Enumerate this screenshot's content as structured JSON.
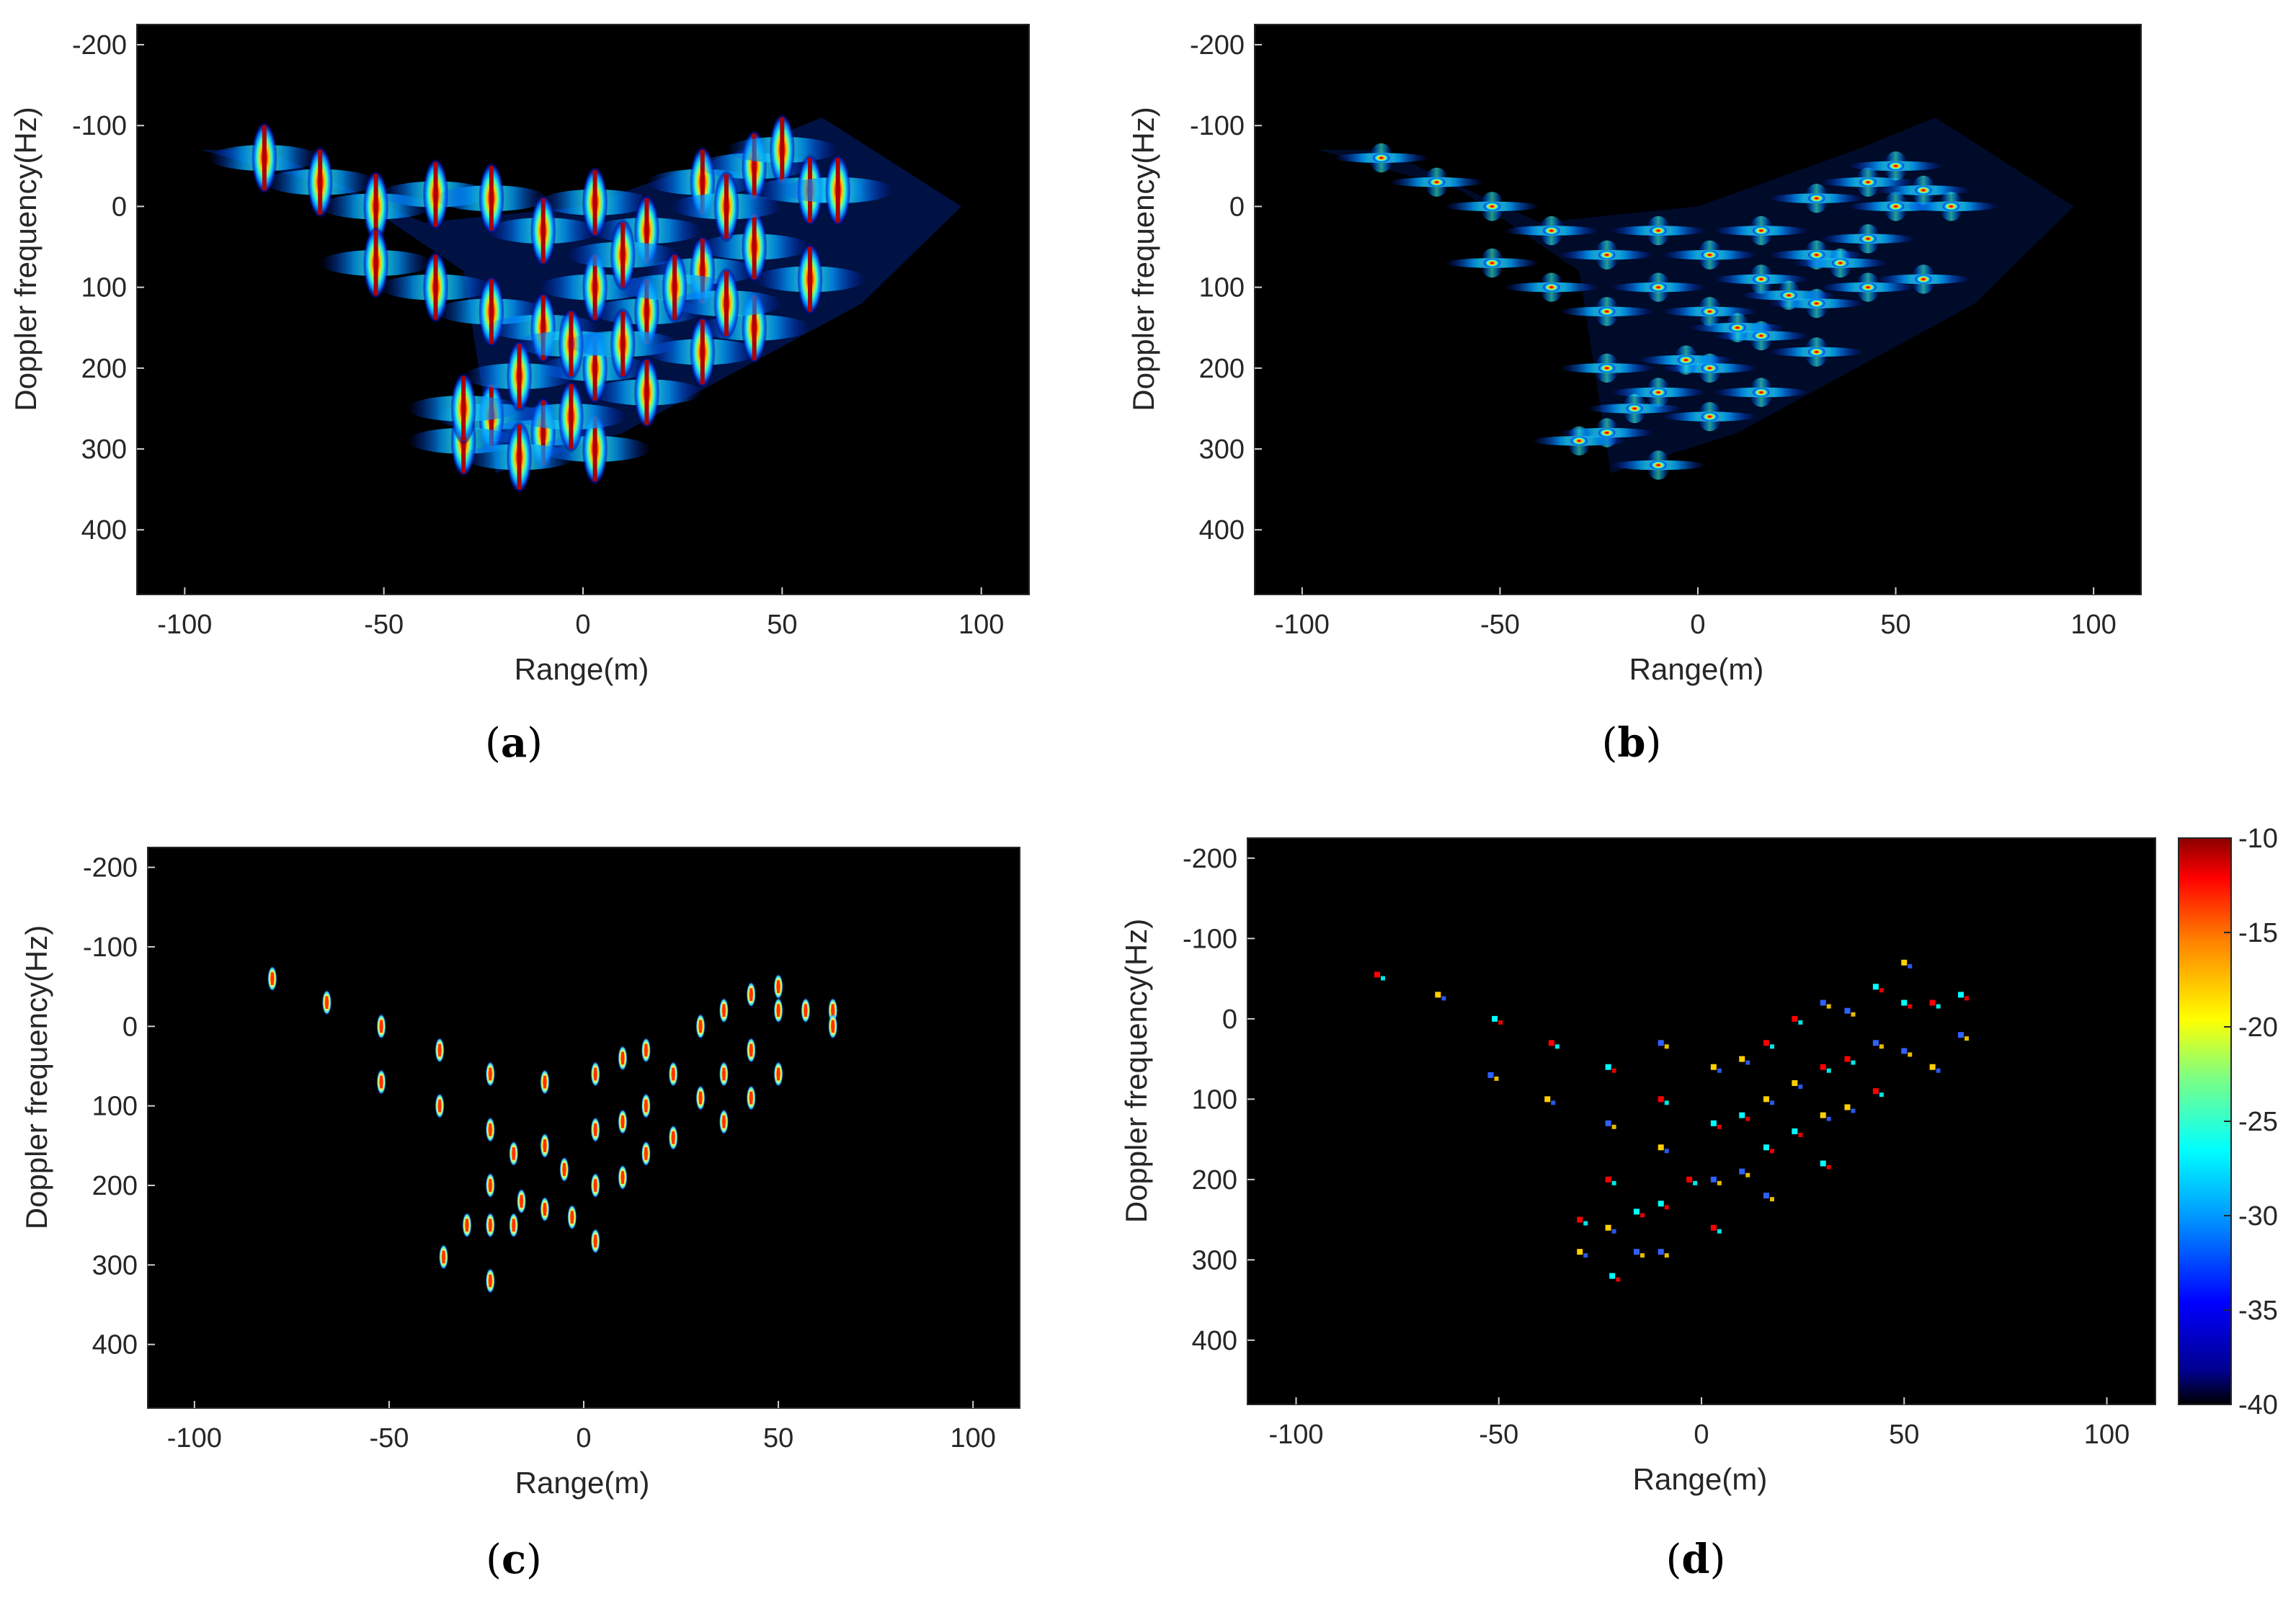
{
  "figure": {
    "captions": [
      "(a)",
      "(b)",
      "(c)",
      "(d)"
    ],
    "caption_letters": [
      "a",
      "b",
      "c",
      "d"
    ]
  },
  "colorbar": {
    "ticks": [
      -10,
      -15,
      -20,
      -25,
      -30,
      -35,
      -40
    ],
    "tick_labels": [
      "-10",
      "-15",
      "-20",
      "-25",
      "-30",
      "-35",
      "-40"
    ],
    "range": [
      -40,
      -10
    ],
    "colormap": "jet",
    "background": "#000000"
  },
  "chart_data": [
    {
      "panel": "a",
      "type": "heatmap",
      "title": "",
      "xlabel": "Range(m)",
      "ylabel": "Doppler frequency(Hz)",
      "xlim": [
        -112,
        112
      ],
      "ylim": [
        -225,
        480
      ],
      "y_reversed": true,
      "xticks": [
        -100,
        -50,
        0,
        50,
        100
      ],
      "yticks": [
        -200,
        -100,
        0,
        100,
        200,
        300,
        400
      ],
      "xtick_labels": [
        "-100",
        "-50",
        "0",
        "50",
        "100"
      ],
      "ytick_labels": [
        "-200",
        "-100",
        "0",
        "100",
        "200",
        "300",
        "400"
      ],
      "style": "smeared",
      "scatterers": [
        [
          -80,
          -60
        ],
        [
          -66,
          -30
        ],
        [
          -52,
          0
        ],
        [
          -52,
          70
        ],
        [
          -37,
          -15
        ],
        [
          -37,
          100
        ],
        [
          -23,
          -10
        ],
        [
          -23,
          130
        ],
        [
          -23,
          260
        ],
        [
          -10,
          30
        ],
        [
          -10,
          150
        ],
        [
          -10,
          280
        ],
        [
          3,
          -5
        ],
        [
          3,
          100
        ],
        [
          3,
          200
        ],
        [
          3,
          300
        ],
        [
          16,
          30
        ],
        [
          16,
          130
        ],
        [
          16,
          230
        ],
        [
          30,
          -30
        ],
        [
          30,
          80
        ],
        [
          30,
          180
        ],
        [
          43,
          -50
        ],
        [
          43,
          50
        ],
        [
          43,
          150
        ],
        [
          50,
          -70
        ],
        [
          57,
          -20
        ],
        [
          57,
          90
        ],
        [
          64,
          -20
        ],
        [
          -30,
          290
        ],
        [
          -30,
          250
        ],
        [
          -16,
          210
        ],
        [
          -16,
          310
        ],
        [
          -3,
          170
        ],
        [
          -3,
          260
        ],
        [
          10,
          60
        ],
        [
          10,
          170
        ],
        [
          23,
          100
        ],
        [
          36,
          0
        ],
        [
          36,
          120
        ]
      ]
    },
    {
      "panel": "b",
      "type": "heatmap",
      "title": "",
      "xlabel": "Range(m)",
      "ylabel": "Doppler frequency(Hz)",
      "xlim": [
        -112,
        112
      ],
      "ylim": [
        -225,
        480
      ],
      "y_reversed": true,
      "xticks": [
        -100,
        -50,
        0,
        50,
        100
      ],
      "yticks": [
        -200,
        -100,
        0,
        100,
        200,
        300,
        400
      ],
      "xtick_labels": [
        "-100",
        "-50",
        "0",
        "50",
        "100"
      ],
      "ytick_labels": [
        "-200",
        "-100",
        "0",
        "100",
        "200",
        "300",
        "400"
      ],
      "style": "crossed",
      "scatterers": [
        [
          -80,
          -60
        ],
        [
          -66,
          -30
        ],
        [
          -52,
          0
        ],
        [
          -52,
          70
        ],
        [
          -37,
          30
        ],
        [
          -37,
          100
        ],
        [
          -23,
          60
        ],
        [
          -23,
          130
        ],
        [
          -23,
          200
        ],
        [
          -23,
          280
        ],
        [
          -10,
          30
        ],
        [
          -10,
          100
        ],
        [
          -10,
          230
        ],
        [
          -10,
          320
        ],
        [
          3,
          60
        ],
        [
          3,
          130
        ],
        [
          3,
          200
        ],
        [
          3,
          260
        ],
        [
          16,
          30
        ],
        [
          16,
          90
        ],
        [
          16,
          160
        ],
        [
          16,
          230
        ],
        [
          30,
          -10
        ],
        [
          30,
          60
        ],
        [
          30,
          120
        ],
        [
          30,
          180
        ],
        [
          43,
          -30
        ],
        [
          43,
          40
        ],
        [
          43,
          100
        ],
        [
          50,
          -50
        ],
        [
          50,
          0
        ],
        [
          57,
          -20
        ],
        [
          57,
          90
        ],
        [
          64,
          0
        ],
        [
          -30,
          290
        ],
        [
          -16,
          250
        ],
        [
          -3,
          190
        ],
        [
          10,
          150
        ],
        [
          23,
          110
        ],
        [
          36,
          70
        ]
      ]
    },
    {
      "panel": "c",
      "type": "heatmap",
      "title": "",
      "xlabel": "Range(m)",
      "ylabel": "Doppler frequency(Hz)",
      "xlim": [
        -112,
        112
      ],
      "ylim": [
        -225,
        480
      ],
      "y_reversed": true,
      "xticks": [
        -100,
        -50,
        0,
        50,
        100
      ],
      "yticks": [
        -200,
        -100,
        0,
        100,
        200,
        300,
        400
      ],
      "xtick_labels": [
        "-100",
        "-50",
        "0",
        "50",
        "100"
      ],
      "ytick_labels": [
        "-200",
        "-100",
        "0",
        "100",
        "200",
        "300",
        "400"
      ],
      "style": "compact",
      "scatterers": [
        [
          -80,
          -60
        ],
        [
          -66,
          -30
        ],
        [
          -52,
          0
        ],
        [
          -52,
          70
        ],
        [
          -37,
          30
        ],
        [
          -37,
          100
        ],
        [
          -24,
          60
        ],
        [
          -24,
          130
        ],
        [
          -24,
          200
        ],
        [
          -24,
          250
        ],
        [
          -24,
          320
        ],
        [
          -18,
          160
        ],
        [
          -18,
          250
        ],
        [
          -10,
          70
        ],
        [
          -10,
          150
        ],
        [
          -10,
          230
        ],
        [
          -5,
          180
        ],
        [
          3,
          60
        ],
        [
          3,
          130
        ],
        [
          3,
          200
        ],
        [
          3,
          270
        ],
        [
          10,
          40
        ],
        [
          10,
          120
        ],
        [
          10,
          190
        ],
        [
          16,
          30
        ],
        [
          16,
          100
        ],
        [
          16,
          160
        ],
        [
          23,
          60
        ],
        [
          23,
          140
        ],
        [
          30,
          0
        ],
        [
          30,
          90
        ],
        [
          36,
          -20
        ],
        [
          36,
          60
        ],
        [
          36,
          120
        ],
        [
          43,
          -40
        ],
        [
          43,
          30
        ],
        [
          43,
          90
        ],
        [
          50,
          -50
        ],
        [
          50,
          -20
        ],
        [
          50,
          60
        ],
        [
          57,
          -20
        ],
        [
          64,
          -20
        ],
        [
          64,
          0
        ],
        [
          -36,
          290
        ],
        [
          -30,
          250
        ],
        [
          -16,
          220
        ],
        [
          -3,
          240
        ]
      ]
    },
    {
      "panel": "d",
      "type": "heatmap",
      "title": "",
      "xlabel": "Range(m)",
      "ylabel": "Doppler frequency(Hz)",
      "xlim": [
        -112,
        112
      ],
      "ylim": [
        -225,
        480
      ],
      "y_reversed": true,
      "xticks": [
        -100,
        -50,
        0,
        50,
        100
      ],
      "yticks": [
        -200,
        -100,
        0,
        100,
        200,
        300,
        400
      ],
      "xtick_labels": [
        "-100",
        "-50",
        "0",
        "50",
        "100"
      ],
      "ytick_labels": [
        "-200",
        "-100",
        "0",
        "100",
        "200",
        "300",
        "400"
      ],
      "style": "sparse",
      "scatterers": [
        [
          -80,
          -55
        ],
        [
          -65,
          -30
        ],
        [
          -51,
          0
        ],
        [
          -52,
          70
        ],
        [
          -37,
          30
        ],
        [
          -38,
          100
        ],
        [
          -23,
          60
        ],
        [
          -23,
          130
        ],
        [
          -23,
          200
        ],
        [
          -23,
          260
        ],
        [
          -22,
          320
        ],
        [
          -10,
          30
        ],
        [
          -10,
          100
        ],
        [
          -10,
          160
        ],
        [
          -10,
          230
        ],
        [
          -10,
          290
        ],
        [
          -3,
          200
        ],
        [
          3,
          60
        ],
        [
          3,
          130
        ],
        [
          3,
          200
        ],
        [
          3,
          260
        ],
        [
          10,
          50
        ],
        [
          10,
          120
        ],
        [
          10,
          190
        ],
        [
          16,
          30
        ],
        [
          16,
          100
        ],
        [
          16,
          160
        ],
        [
          16,
          220
        ],
        [
          23,
          0
        ],
        [
          23,
          80
        ],
        [
          23,
          140
        ],
        [
          30,
          -20
        ],
        [
          30,
          60
        ],
        [
          30,
          120
        ],
        [
          30,
          180
        ],
        [
          36,
          -10
        ],
        [
          36,
          50
        ],
        [
          36,
          110
        ],
        [
          43,
          -40
        ],
        [
          43,
          30
        ],
        [
          43,
          90
        ],
        [
          50,
          -70
        ],
        [
          50,
          -20
        ],
        [
          50,
          40
        ],
        [
          57,
          -20
        ],
        [
          57,
          60
        ],
        [
          64,
          -30
        ],
        [
          64,
          20
        ],
        [
          -30,
          250
        ],
        [
          -30,
          290
        ],
        [
          -16,
          240
        ],
        [
          -16,
          290
        ]
      ]
    }
  ]
}
